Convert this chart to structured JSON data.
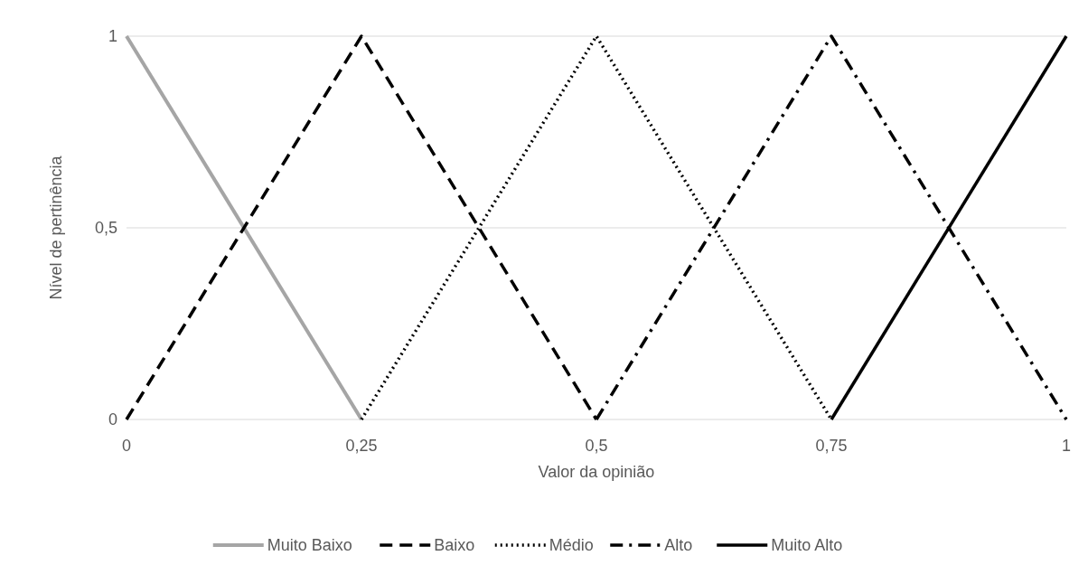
{
  "chart_data": {
    "type": "line",
    "xlabel": "Valor da opinião",
    "ylabel": "Nível de pertinência",
    "xlim": [
      0,
      1
    ],
    "xticks": [
      0,
      {
        "value": 0.25,
        "label": "0,25"
      },
      {
        "value": 0.5,
        "label": "0,5"
      },
      {
        "value": 0.75,
        "label": "0,75"
      },
      1
    ],
    "ylim": [
      0,
      1
    ],
    "yticks": [
      0,
      {
        "value": 0.5,
        "label": "0,5"
      },
      1
    ],
    "grid": "y",
    "legend": "bottom",
    "series": [
      {
        "name": "Muito Baixo",
        "color": "#a5a5a5",
        "line_style": "solid",
        "x": [
          0,
          0.25
        ],
        "values": [
          1,
          0
        ]
      },
      {
        "name": "Baixo",
        "color": "#000000",
        "line_style": "dashed",
        "x": [
          0,
          0.25,
          0.5
        ],
        "values": [
          0,
          1,
          0
        ]
      },
      {
        "name": "Médio",
        "color": "#000000",
        "line_style": "dotted",
        "x": [
          0.25,
          0.5,
          0.75
        ],
        "values": [
          0,
          1,
          0
        ]
      },
      {
        "name": "Alto",
        "color": "#000000",
        "line_style": "dashdot",
        "x": [
          0.5,
          0.75,
          1
        ],
        "values": [
          0,
          1,
          0
        ]
      },
      {
        "name": "Muito Alto",
        "color": "#000000",
        "line_style": "solid",
        "x": [
          0.75,
          1
        ],
        "values": [
          0,
          1
        ]
      }
    ]
  }
}
